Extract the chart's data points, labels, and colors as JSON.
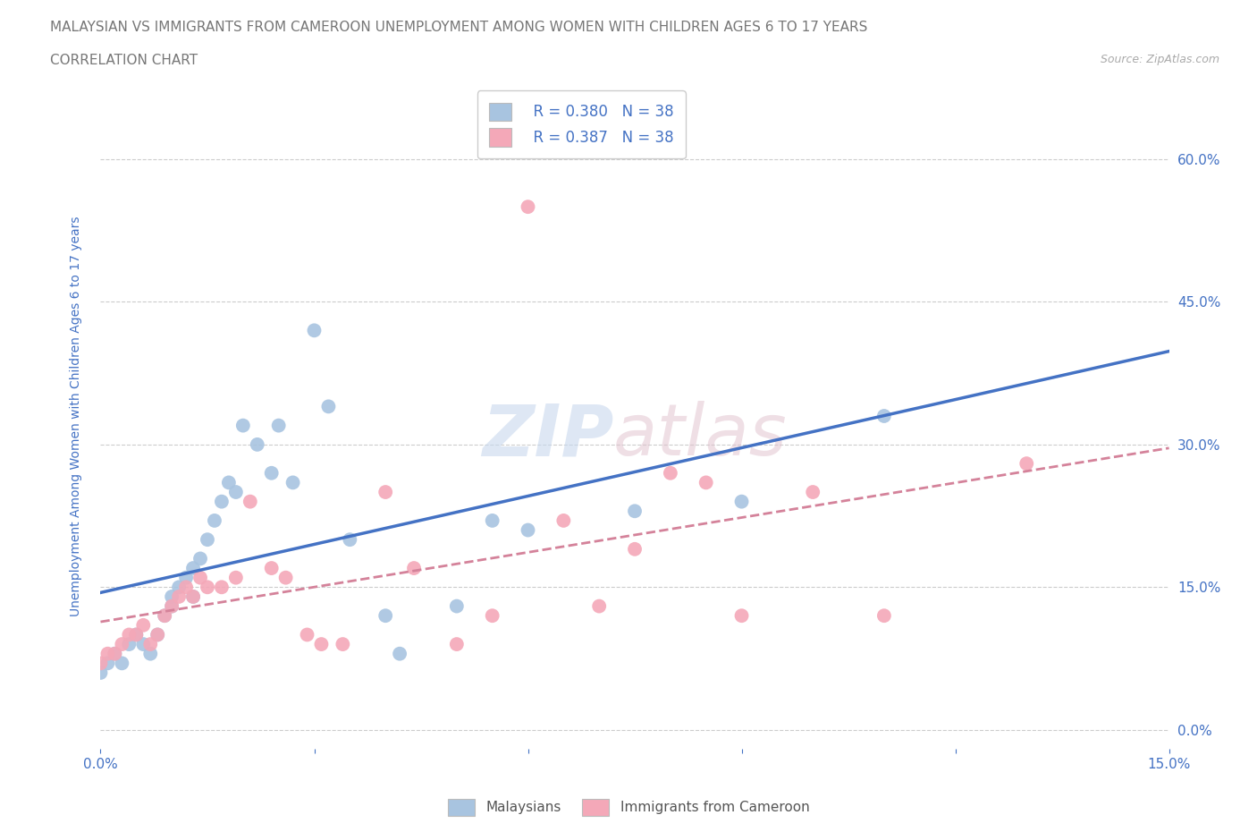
{
  "title_line1": "MALAYSIAN VS IMMIGRANTS FROM CAMEROON UNEMPLOYMENT AMONG WOMEN WITH CHILDREN AGES 6 TO 17 YEARS",
  "title_line2": "CORRELATION CHART",
  "source": "Source: ZipAtlas.com",
  "ylabel": "Unemployment Among Women with Children Ages 6 to 17 years",
  "xlim": [
    0.0,
    0.15
  ],
  "ylim": [
    -0.02,
    0.68
  ],
  "legend_r_blue": "R = 0.380",
  "legend_n_blue": "N = 38",
  "legend_r_pink": "R = 0.387",
  "legend_n_pink": "N = 38",
  "blue_color": "#a8c4e0",
  "pink_color": "#f4a8b8",
  "blue_line_color": "#4472c4",
  "pink_line_color": "#d4829a",
  "axis_label_color": "#4472c4",
  "malaysians_x": [
    0.0,
    0.001,
    0.002,
    0.003,
    0.004,
    0.005,
    0.006,
    0.007,
    0.008,
    0.009,
    0.01,
    0.01,
    0.011,
    0.012,
    0.013,
    0.013,
    0.014,
    0.015,
    0.016,
    0.017,
    0.018,
    0.019,
    0.02,
    0.022,
    0.024,
    0.025,
    0.027,
    0.03,
    0.032,
    0.035,
    0.04,
    0.042,
    0.05,
    0.055,
    0.06,
    0.075,
    0.09,
    0.11
  ],
  "malaysians_y": [
    0.06,
    0.07,
    0.08,
    0.07,
    0.09,
    0.1,
    0.09,
    0.08,
    0.1,
    0.12,
    0.13,
    0.14,
    0.15,
    0.16,
    0.14,
    0.17,
    0.18,
    0.2,
    0.22,
    0.24,
    0.26,
    0.25,
    0.32,
    0.3,
    0.27,
    0.32,
    0.26,
    0.42,
    0.34,
    0.2,
    0.12,
    0.08,
    0.13,
    0.22,
    0.21,
    0.23,
    0.24,
    0.33
  ],
  "cameroon_x": [
    0.0,
    0.001,
    0.002,
    0.003,
    0.004,
    0.005,
    0.006,
    0.007,
    0.008,
    0.009,
    0.01,
    0.011,
    0.012,
    0.013,
    0.014,
    0.015,
    0.017,
    0.019,
    0.021,
    0.024,
    0.026,
    0.029,
    0.031,
    0.034,
    0.04,
    0.044,
    0.05,
    0.055,
    0.06,
    0.065,
    0.07,
    0.075,
    0.08,
    0.085,
    0.09,
    0.1,
    0.11,
    0.13
  ],
  "cameroon_y": [
    0.07,
    0.08,
    0.08,
    0.09,
    0.1,
    0.1,
    0.11,
    0.09,
    0.1,
    0.12,
    0.13,
    0.14,
    0.15,
    0.14,
    0.16,
    0.15,
    0.15,
    0.16,
    0.24,
    0.17,
    0.16,
    0.1,
    0.09,
    0.09,
    0.25,
    0.17,
    0.09,
    0.12,
    0.55,
    0.22,
    0.13,
    0.19,
    0.27,
    0.26,
    0.12,
    0.25,
    0.12,
    0.28
  ]
}
